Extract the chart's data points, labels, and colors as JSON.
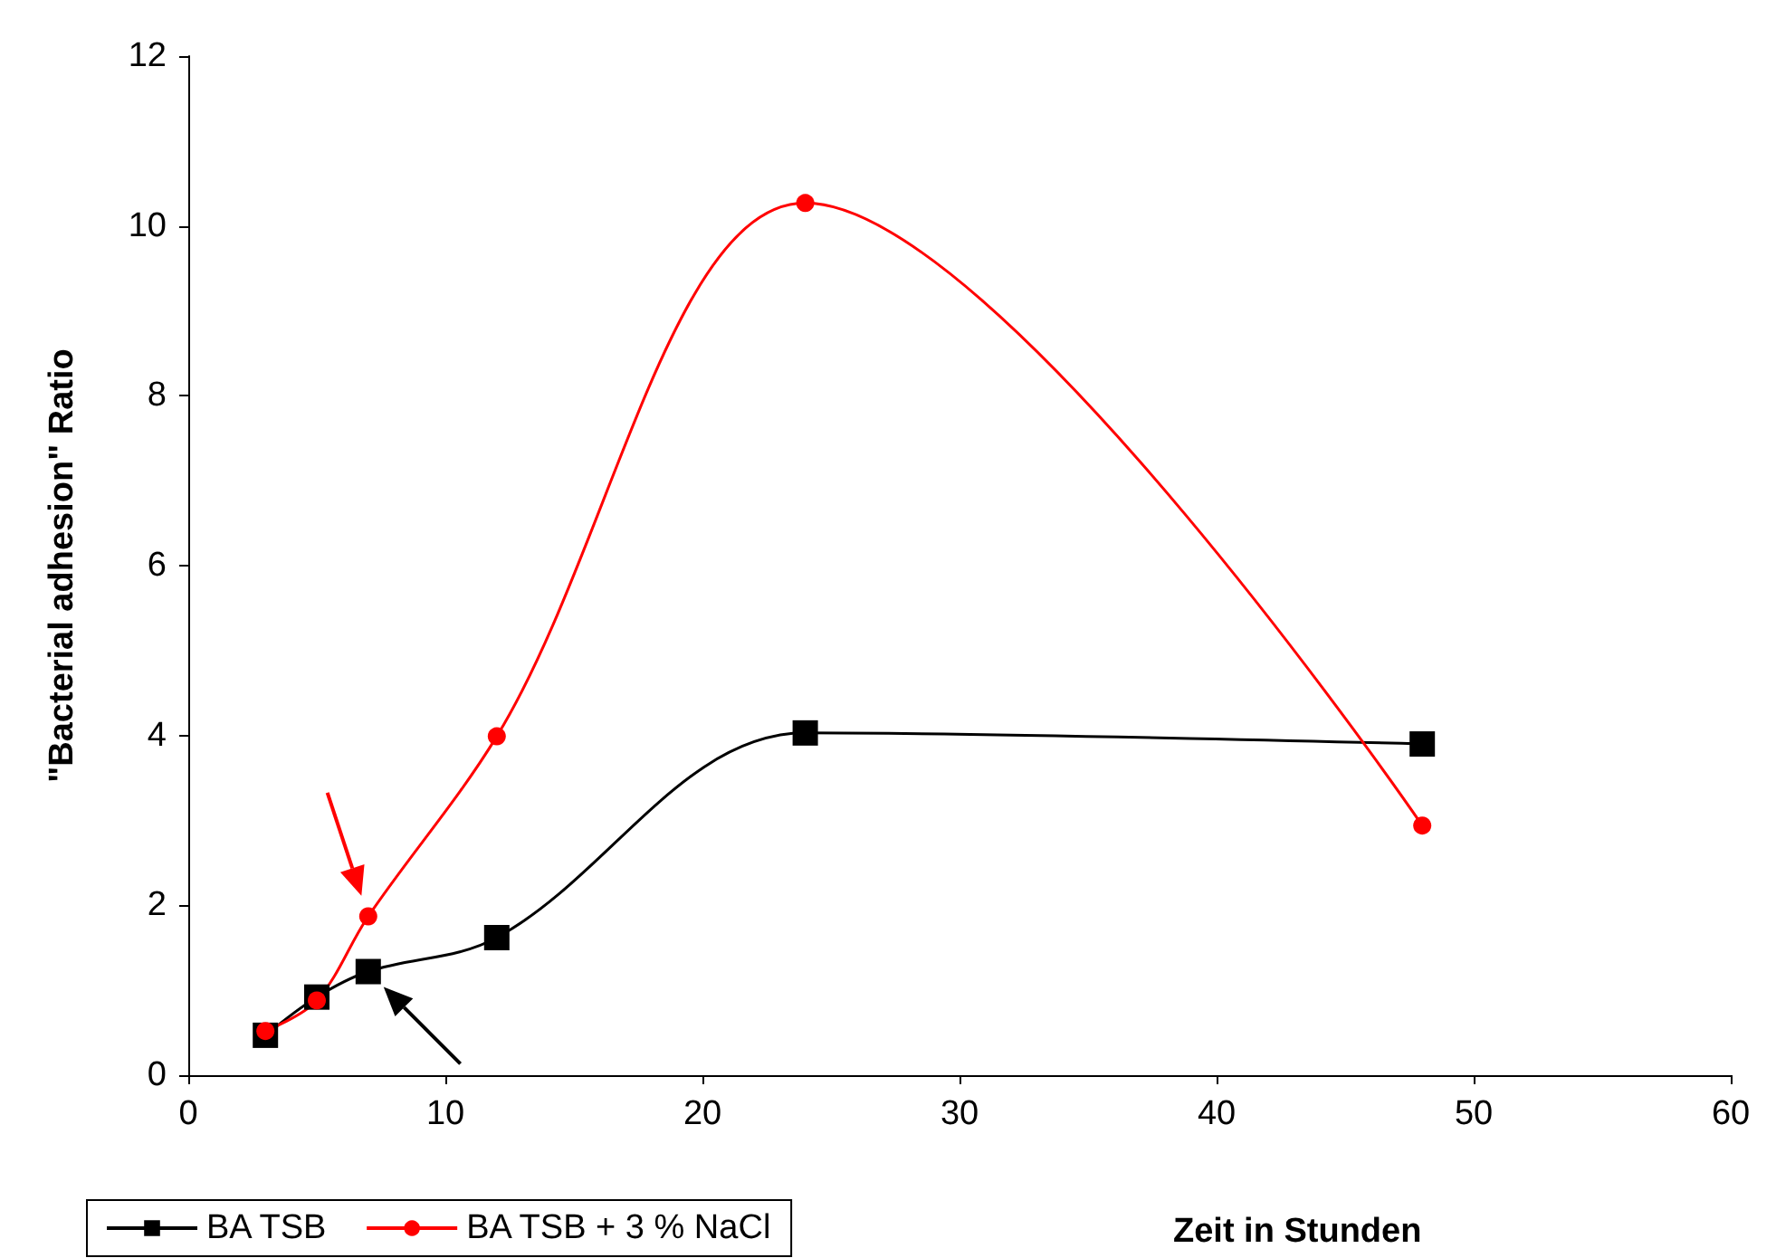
{
  "chart_data": {
    "type": "line",
    "xlabel": "Zeit in Stunden",
    "ylabel": "\"Bacterial adhesion\" Ratio",
    "x": [
      3,
      5,
      7,
      12,
      24,
      48
    ],
    "series": [
      {
        "name": "BA TSB",
        "color": "#000000",
        "marker": "square",
        "values": [
          0.47,
          0.92,
          1.22,
          1.62,
          4.03,
          3.9
        ]
      },
      {
        "name": "BA TSB + 3 % NaCl",
        "color": "#ff0000",
        "marker": "circle",
        "values": [
          0.52,
          0.88,
          1.87,
          3.99,
          10.27,
          2.94
        ]
      }
    ],
    "xlim": [
      0,
      60
    ],
    "xticks": [
      0,
      10,
      20,
      30,
      40,
      50,
      60
    ],
    "ylim": [
      0,
      12
    ],
    "yticks": [
      0,
      2,
      4,
      6,
      8,
      10,
      12
    ],
    "grid": false,
    "legend": "bottom left"
  }
}
